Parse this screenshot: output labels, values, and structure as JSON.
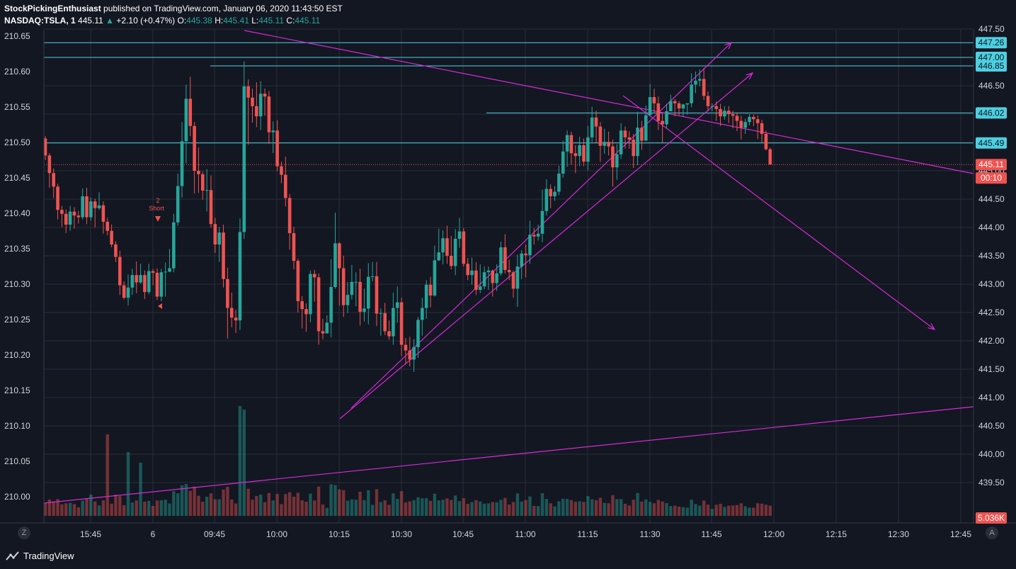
{
  "header": {
    "publisher": "StockPickingEnthusiast",
    "published_text": " published on TradingView.com, January 06, 2020 11:43:50 EST",
    "symbol": "NASDAQ:TSLA, 1",
    "last": "445.11",
    "change": "+2.10 (+0.47%)",
    "o_label": "O:",
    "o_value": "445.38",
    "h_label": "H:",
    "h_value": "445.41",
    "l_label": "L:",
    "l_value": "445.11",
    "c_label": "C:",
    "c_value": "445.11"
  },
  "footer": {
    "brand": "TradingView",
    "left_button": "Z",
    "right_button": "A"
  },
  "colors": {
    "up": "#26a69a",
    "down": "#ef5350",
    "hline": "#4dd0e1",
    "trend": "#d62bd6",
    "bg": "#131722",
    "grid": "#2a2e39"
  },
  "chart_data": {
    "type": "candlestick",
    "left_axis": {
      "ylim": [
        209.97,
        210.66
      ],
      "ticks": [
        "210.65",
        "210.60",
        "210.55",
        "210.50",
        "210.45",
        "210.40",
        "210.35",
        "210.30",
        "210.25",
        "210.20",
        "210.15",
        "210.10",
        "210.05",
        "210.00"
      ]
    },
    "right_axis": {
      "ylim": [
        439.3,
        448.0
      ],
      "ticks": [
        "447.50",
        "447.00",
        "446.50",
        "446.00",
        "445.50",
        "445.00",
        "444.50",
        "444.00",
        "443.50",
        "443.00",
        "442.50",
        "442.00",
        "441.50",
        "441.00",
        "440.50",
        "440.00",
        "439.50"
      ]
    },
    "x_ticks": [
      "15:45",
      "6",
      "09:45",
      "10:00",
      "10:15",
      "10:30",
      "10:45",
      "11:00",
      "11:15",
      "11:30",
      "11:45",
      "12:00",
      "12:15",
      "12:30",
      "12:45"
    ],
    "horizontal_levels": [
      "447.26",
      "447.00",
      "446.85",
      "446.02",
      "445.49"
    ],
    "last_price": "445.11",
    "countdown": "00:10",
    "volume_label": "5.036K",
    "annotation": "Short",
    "annotation_num": "2",
    "candles": [
      [
        445.57,
        445.27,
        445.61,
        445.19
      ],
      [
        445.27,
        444.96,
        445.31,
        444.7
      ],
      [
        444.96,
        444.72,
        445.04,
        444.52
      ],
      [
        444.72,
        444.31,
        444.77,
        444.14
      ],
      [
        444.31,
        444.24,
        444.38,
        444.01
      ],
      [
        444.24,
        444.05,
        444.32,
        443.9
      ],
      [
        444.05,
        444.28,
        444.38,
        443.94
      ],
      [
        444.28,
        444.21,
        444.36,
        443.98
      ],
      [
        444.21,
        444.18,
        444.29,
        444.07
      ],
      [
        444.18,
        444.55,
        444.69,
        444.14
      ],
      [
        444.55,
        444.18,
        444.7,
        444.06
      ],
      [
        444.18,
        444.46,
        444.53,
        444.12
      ],
      [
        444.46,
        444.34,
        444.51,
        444.0
      ],
      [
        444.34,
        444.39,
        444.62,
        444.31
      ],
      [
        444.39,
        444.1,
        444.46,
        443.89
      ],
      [
        444.1,
        443.94,
        444.17,
        443.86
      ],
      [
        443.94,
        443.7,
        444.05,
        443.65
      ],
      [
        443.7,
        443.48,
        443.76,
        443.39
      ],
      [
        443.48,
        442.98,
        443.59,
        442.81
      ],
      [
        442.98,
        442.76,
        443.05,
        442.73
      ],
      [
        442.76,
        442.94,
        443.17,
        442.62
      ],
      [
        442.94,
        443.16,
        443.27,
        442.81
      ],
      [
        443.16,
        443.03,
        443.4,
        442.84
      ],
      [
        443.03,
        443.16,
        443.36,
        443.01
      ],
      [
        443.16,
        442.86,
        443.24,
        442.74
      ],
      [
        442.86,
        443.23,
        443.36,
        442.82
      ],
      [
        443.23,
        443.2,
        443.27,
        442.98
      ],
      [
        443.2,
        442.78,
        443.28,
        442.72
      ],
      [
        442.78,
        443.21,
        443.27,
        442.7
      ],
      [
        443.21,
        443.22,
        443.38,
        442.78
      ],
      [
        443.22,
        443.28,
        443.62,
        443.21
      ],
      [
        443.28,
        444.09,
        444.24,
        443.21
      ],
      [
        444.09,
        444.73,
        444.95,
        444.03
      ],
      [
        444.73,
        445.52,
        445.86,
        444.53
      ],
      [
        445.52,
        446.27,
        446.52,
        445.13
      ],
      [
        446.27,
        445.79,
        446.66,
        445.61
      ],
      [
        445.79,
        445.0,
        445.86,
        444.6
      ],
      [
        445.0,
        444.94,
        445.41,
        444.61
      ],
      [
        444.94,
        444.65,
        444.99,
        444.49
      ],
      [
        444.65,
        444.66,
        445.03,
        444.28
      ],
      [
        444.66,
        444.06,
        444.92,
        444.0
      ],
      [
        444.06,
        443.7,
        444.17,
        443.55
      ],
      [
        443.7,
        443.91,
        444.01,
        443.39
      ],
      [
        443.91,
        443.09,
        444.05,
        442.94
      ],
      [
        443.09,
        442.58,
        443.29,
        442.04
      ],
      [
        442.58,
        442.41,
        442.85,
        442.24
      ],
      [
        442.41,
        442.36,
        442.55,
        442.14
      ],
      [
        442.36,
        443.92,
        444.16,
        442.19
      ],
      [
        443.92,
        446.49,
        446.93,
        443.8
      ],
      [
        446.49,
        446.29,
        446.61,
        445.46
      ],
      [
        446.29,
        446.14,
        446.45,
        445.85
      ],
      [
        446.14,
        445.96,
        446.56,
        445.77
      ],
      [
        445.96,
        446.36,
        446.58,
        445.72
      ],
      [
        446.36,
        446.31,
        446.45,
        445.97
      ],
      [
        446.31,
        445.68,
        446.41,
        445.47
      ],
      [
        445.68,
        445.71,
        445.87,
        445.31
      ],
      [
        445.71,
        445.08,
        445.89,
        445.0
      ],
      [
        445.08,
        444.93,
        445.16,
        444.78
      ],
      [
        444.93,
        444.52,
        445.25,
        444.37
      ],
      [
        444.52,
        443.9,
        444.59,
        443.61
      ],
      [
        443.9,
        443.41,
        444.01,
        443.26
      ],
      [
        443.41,
        442.7,
        443.45,
        442.5
      ],
      [
        442.7,
        442.56,
        442.79,
        442.22
      ],
      [
        442.56,
        442.47,
        442.66,
        442.16
      ],
      [
        442.47,
        443.18,
        443.24,
        442.33
      ],
      [
        443.18,
        443.12,
        443.25,
        442.69
      ],
      [
        443.12,
        442.17,
        443.19,
        441.93
      ],
      [
        442.17,
        442.13,
        442.39,
        442.03
      ],
      [
        442.13,
        442.32,
        442.45,
        442.26
      ],
      [
        442.32,
        442.95,
        443.44,
        442.06
      ],
      [
        442.95,
        443.72,
        444.26,
        442.92
      ],
      [
        443.72,
        443.28,
        443.74,
        442.62
      ],
      [
        443.28,
        442.63,
        443.5,
        442.42
      ],
      [
        442.63,
        442.81,
        443.04,
        442.49
      ],
      [
        442.81,
        443.04,
        443.34,
        442.73
      ],
      [
        443.04,
        443.04,
        443.21,
        442.61
      ],
      [
        443.04,
        442.51,
        443.27,
        442.27
      ],
      [
        442.51,
        442.57,
        442.92,
        442.34
      ],
      [
        442.57,
        443.13,
        443.37,
        442.29
      ],
      [
        443.13,
        443.14,
        443.39,
        443.05
      ],
      [
        443.14,
        442.48,
        443.39,
        442.26
      ],
      [
        442.48,
        442.49,
        442.57,
        442.09
      ],
      [
        442.49,
        442.17,
        442.67,
        442.1
      ],
      [
        442.17,
        442.08,
        442.36,
        442.02
      ],
      [
        442.08,
        442.58,
        442.85,
        441.93
      ],
      [
        442.58,
        442.68,
        442.96,
        442.32
      ],
      [
        442.68,
        441.93,
        442.76,
        441.73
      ],
      [
        441.93,
        441.83,
        442.05,
        441.59
      ],
      [
        441.83,
        441.67,
        442.07,
        441.55
      ],
      [
        441.67,
        441.89,
        442.03,
        441.45
      ],
      [
        441.89,
        442.37,
        442.42,
        441.7
      ],
      [
        442.37,
        442.58,
        442.76,
        442.09
      ],
      [
        442.58,
        442.99,
        443.07,
        442.39
      ],
      [
        442.99,
        442.8,
        443.13,
        442.59
      ],
      [
        442.8,
        443.42,
        443.68,
        442.78
      ],
      [
        443.42,
        443.56,
        443.98,
        443.41
      ],
      [
        443.56,
        443.81,
        443.95,
        443.35
      ],
      [
        443.81,
        443.5,
        444.03,
        443.36
      ],
      [
        443.5,
        443.32,
        443.85,
        443.26
      ],
      [
        443.32,
        443.8,
        443.97,
        443.16
      ],
      [
        443.8,
        443.93,
        444.17,
        443.64
      ],
      [
        443.93,
        443.36,
        443.99,
        443.31
      ],
      [
        443.36,
        443.16,
        443.46,
        443.07
      ],
      [
        443.16,
        443.24,
        443.47,
        442.99
      ],
      [
        443.24,
        442.9,
        443.39,
        442.81
      ],
      [
        442.9,
        442.96,
        443.35,
        442.84
      ],
      [
        442.96,
        443.21,
        443.31,
        442.91
      ],
      [
        443.21,
        443.24,
        443.31,
        442.9
      ],
      [
        443.24,
        443.02,
        443.26,
        442.78
      ],
      [
        443.02,
        443.19,
        443.35,
        442.88
      ],
      [
        443.19,
        443.65,
        443.75,
        443.15
      ],
      [
        443.65,
        443.25,
        443.88,
        443.19
      ],
      [
        443.25,
        443.21,
        443.43,
        443.07
      ],
      [
        443.21,
        442.92,
        443.24,
        442.76
      ],
      [
        442.92,
        443.31,
        443.52,
        442.6
      ],
      [
        443.31,
        443.54,
        443.6,
        443.09
      ],
      [
        443.54,
        443.51,
        443.7,
        443.12
      ],
      [
        443.51,
        443.87,
        444.12,
        443.36
      ],
      [
        443.87,
        443.84,
        443.99,
        443.7
      ],
      [
        443.84,
        443.89,
        444.05,
        443.77
      ],
      [
        443.89,
        444.29,
        444.67,
        443.74
      ],
      [
        444.29,
        444.68,
        444.85,
        444.21
      ],
      [
        444.68,
        444.55,
        444.76,
        444.34
      ],
      [
        444.55,
        444.63,
        444.73,
        444.47
      ],
      [
        444.63,
        444.95,
        445.09,
        444.57
      ],
      [
        444.95,
        445.34,
        445.53,
        444.88
      ],
      [
        445.34,
        445.63,
        445.71,
        445.07
      ],
      [
        445.63,
        445.31,
        445.69,
        445.11
      ],
      [
        445.31,
        445.26,
        445.45,
        444.96
      ],
      [
        445.26,
        445.45,
        445.6,
        445.08
      ],
      [
        445.45,
        445.16,
        445.57,
        445.08
      ],
      [
        445.16,
        445.59,
        445.79,
        445.01
      ],
      [
        445.59,
        445.94,
        446.13,
        445.51
      ],
      [
        445.94,
        445.78,
        446.06,
        445.49
      ],
      [
        445.78,
        445.44,
        445.86,
        445.16
      ],
      [
        445.44,
        445.51,
        445.74,
        445.3
      ],
      [
        445.51,
        445.43,
        445.69,
        445.27
      ],
      [
        445.43,
        445.06,
        445.55,
        444.72
      ],
      [
        445.06,
        445.29,
        445.47,
        444.84
      ],
      [
        445.29,
        445.71,
        445.84,
        445.21
      ],
      [
        445.71,
        445.59,
        445.78,
        445.39
      ],
      [
        445.59,
        445.55,
        445.7,
        445.39
      ],
      [
        445.55,
        445.26,
        445.65,
        445.05
      ],
      [
        445.26,
        445.76,
        446.04,
        445.1
      ],
      [
        445.76,
        445.53,
        445.88,
        445.37
      ],
      [
        445.53,
        445.98,
        446.15,
        445.54
      ],
      [
        445.98,
        446.3,
        446.53,
        446.04
      ],
      [
        446.3,
        446.19,
        446.45,
        446.03
      ],
      [
        446.19,
        445.88,
        446.31,
        445.72
      ],
      [
        445.88,
        445.82,
        446.01,
        445.5
      ],
      [
        445.82,
        446.05,
        446.18,
        445.75
      ],
      [
        446.05,
        446.23,
        446.34,
        446.06
      ],
      [
        446.23,
        446.19,
        446.26,
        445.96
      ],
      [
        446.19,
        446.1,
        446.23,
        445.98
      ],
      [
        446.1,
        446.17,
        446.18,
        445.95
      ],
      [
        446.17,
        446.19,
        446.19,
        445.99
      ],
      [
        446.19,
        446.52,
        446.72,
        446.12
      ],
      [
        446.52,
        446.59,
        446.75,
        446.37
      ],
      [
        446.59,
        446.62,
        446.79,
        446.49
      ],
      [
        446.62,
        446.32,
        446.81,
        446.25
      ],
      [
        446.32,
        446.14,
        446.4,
        446.05
      ],
      [
        446.14,
        446.14,
        446.19,
        446.05
      ],
      [
        446.14,
        446.09,
        446.22,
        445.88
      ],
      [
        446.09,
        445.96,
        446.18,
        445.79
      ],
      [
        445.96,
        446.06,
        446.14,
        445.9
      ],
      [
        446.06,
        446.0,
        446.14,
        445.84
      ],
      [
        446.0,
        445.97,
        446.06,
        445.75
      ],
      [
        445.97,
        445.88,
        446.03,
        445.7
      ],
      [
        445.88,
        445.76,
        445.97,
        445.55
      ],
      [
        445.76,
        445.86,
        445.92,
        445.65
      ],
      [
        445.86,
        445.95,
        446.0,
        445.8
      ],
      [
        445.95,
        445.91,
        445.99,
        445.79
      ],
      [
        445.91,
        445.84,
        445.98,
        445.56
      ],
      [
        445.84,
        445.65,
        445.9,
        445.5
      ],
      [
        445.65,
        445.38,
        445.71,
        445.36
      ],
      [
        445.38,
        445.11,
        445.41,
        445.11
      ]
    ]
  }
}
